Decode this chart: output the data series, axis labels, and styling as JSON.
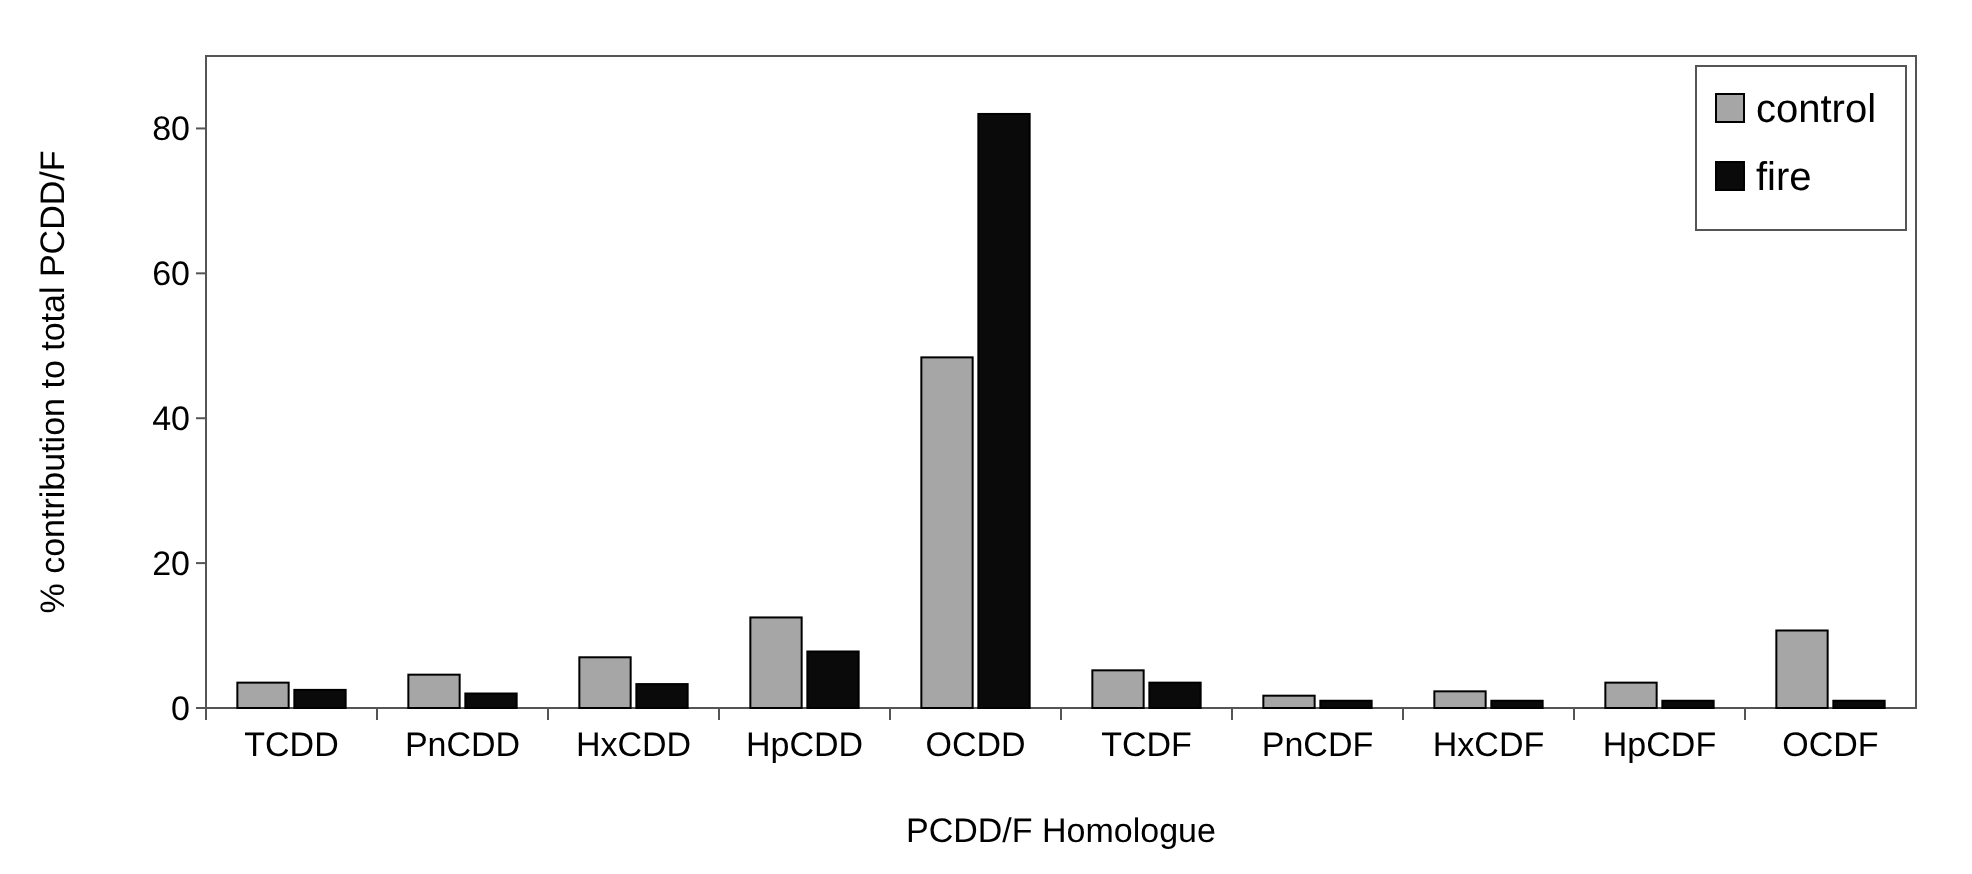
{
  "chart_data": {
    "type": "bar",
    "xlabel": "PCDD/F Homologue",
    "ylabel": "% contribution to total PCDD/F",
    "categories": [
      "TCDD",
      "PnCDD",
      "HxCDD",
      "HpCDD",
      "OCDD",
      "TCDF",
      "PnCDF",
      "HxCDF",
      "HpCDF",
      "OCDF"
    ],
    "series": [
      {
        "name": "control",
        "color": "#a6a6a6",
        "values": [
          3.5,
          4.6,
          7,
          12.5,
          48.4,
          5.2,
          1.7,
          2.3,
          3.5,
          10.7
        ]
      },
      {
        "name": "fire",
        "color": "#0a0a0a",
        "values": [
          2.5,
          2,
          3.3,
          7.8,
          82,
          3.5,
          1,
          1,
          1,
          1
        ]
      }
    ],
    "ylim": [
      0,
      90
    ],
    "yticks": [
      0,
      20,
      40,
      60,
      80
    ],
    "grid": false,
    "legend": "top right"
  }
}
